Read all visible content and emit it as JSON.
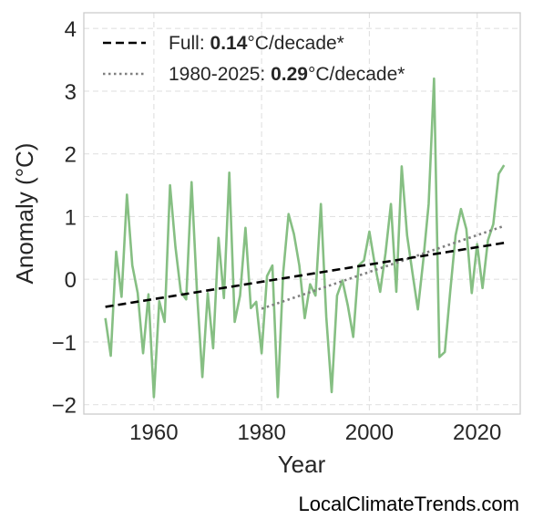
{
  "chart_data": {
    "type": "line",
    "xlabel": "Year",
    "ylabel": "Anomaly (°C)",
    "xlim": [
      1947,
      2028
    ],
    "ylim": [
      -2.15,
      4.25
    ],
    "xticks": [
      1960,
      1980,
      2000,
      2020
    ],
    "yticks": [
      -2,
      -1,
      0,
      1,
      2,
      3,
      4
    ],
    "ytick_labels": [
      "−2",
      "−1",
      "0",
      "1",
      "2",
      "3",
      "4"
    ],
    "grid": true,
    "legend_position": "top-left",
    "series": [
      {
        "style": "solid",
        "color": "#86bf83",
        "x": [
          1951,
          1952,
          1953,
          1954,
          1955,
          1956,
          1957,
          1958,
          1959,
          1960,
          1961,
          1962,
          1963,
          1964,
          1965,
          1966,
          1967,
          1968,
          1969,
          1970,
          1971,
          1972,
          1973,
          1974,
          1975,
          1976,
          1977,
          1978,
          1979,
          1980,
          1981,
          1982,
          1983,
          1984,
          1985,
          1986,
          1987,
          1988,
          1989,
          1990,
          1991,
          1992,
          1993,
          1994,
          1995,
          1996,
          1997,
          1998,
          1999,
          2000,
          2001,
          2002,
          2003,
          2004,
          2005,
          2006,
          2007,
          2008,
          2009,
          2010,
          2011,
          2012,
          2013,
          2014,
          2015,
          2016,
          2017,
          2018,
          2019,
          2020,
          2021,
          2022,
          2023,
          2024,
          2025
        ],
        "y": [
          -0.62,
          -1.22,
          0.44,
          -0.28,
          1.35,
          0.22,
          -0.22,
          -1.18,
          -0.24,
          -1.88,
          -0.35,
          -0.68,
          1.5,
          0.52,
          -0.2,
          -0.32,
          1.55,
          -0.2,
          -1.56,
          -0.22,
          -1.1,
          0.66,
          -0.3,
          1.7,
          -0.68,
          -0.26,
          0.82,
          -0.46,
          -0.36,
          -1.18,
          0.05,
          0.22,
          -1.88,
          0.1,
          1.04,
          0.72,
          0.22,
          -0.62,
          -0.08,
          -0.26,
          1.2,
          -0.6,
          -1.8,
          -0.26,
          -0.02,
          -0.42,
          -0.92,
          0.22,
          0.3,
          0.76,
          0.24,
          -0.2,
          0.42,
          1.2,
          -0.2,
          1.8,
          0.7,
          0.1,
          -0.48,
          0.3,
          1.2,
          3.2,
          -1.24,
          -1.16,
          -0.2,
          0.7,
          1.12,
          0.8,
          -0.22,
          0.56,
          -0.14,
          0.62,
          0.88,
          1.68,
          1.82
        ]
      },
      {
        "name": "Full: ",
        "style": "dashed",
        "color": "#000000",
        "x": [
          1951,
          2025
        ],
        "y": [
          -0.44,
          0.58
        ]
      },
      {
        "name": "1980-2025: ",
        "style": "dotted",
        "color": "#808080",
        "x": [
          1980,
          2025
        ],
        "y": [
          -0.47,
          0.85
        ]
      }
    ],
    "legend": [
      {
        "name": "Full: ",
        "value": "0.14",
        "unit": "°C/decade*"
      },
      {
        "name": "1980-2025: ",
        "value": "0.29",
        "unit": "°C/decade*"
      }
    ]
  },
  "watermark": "LocalClimateTrends.com"
}
